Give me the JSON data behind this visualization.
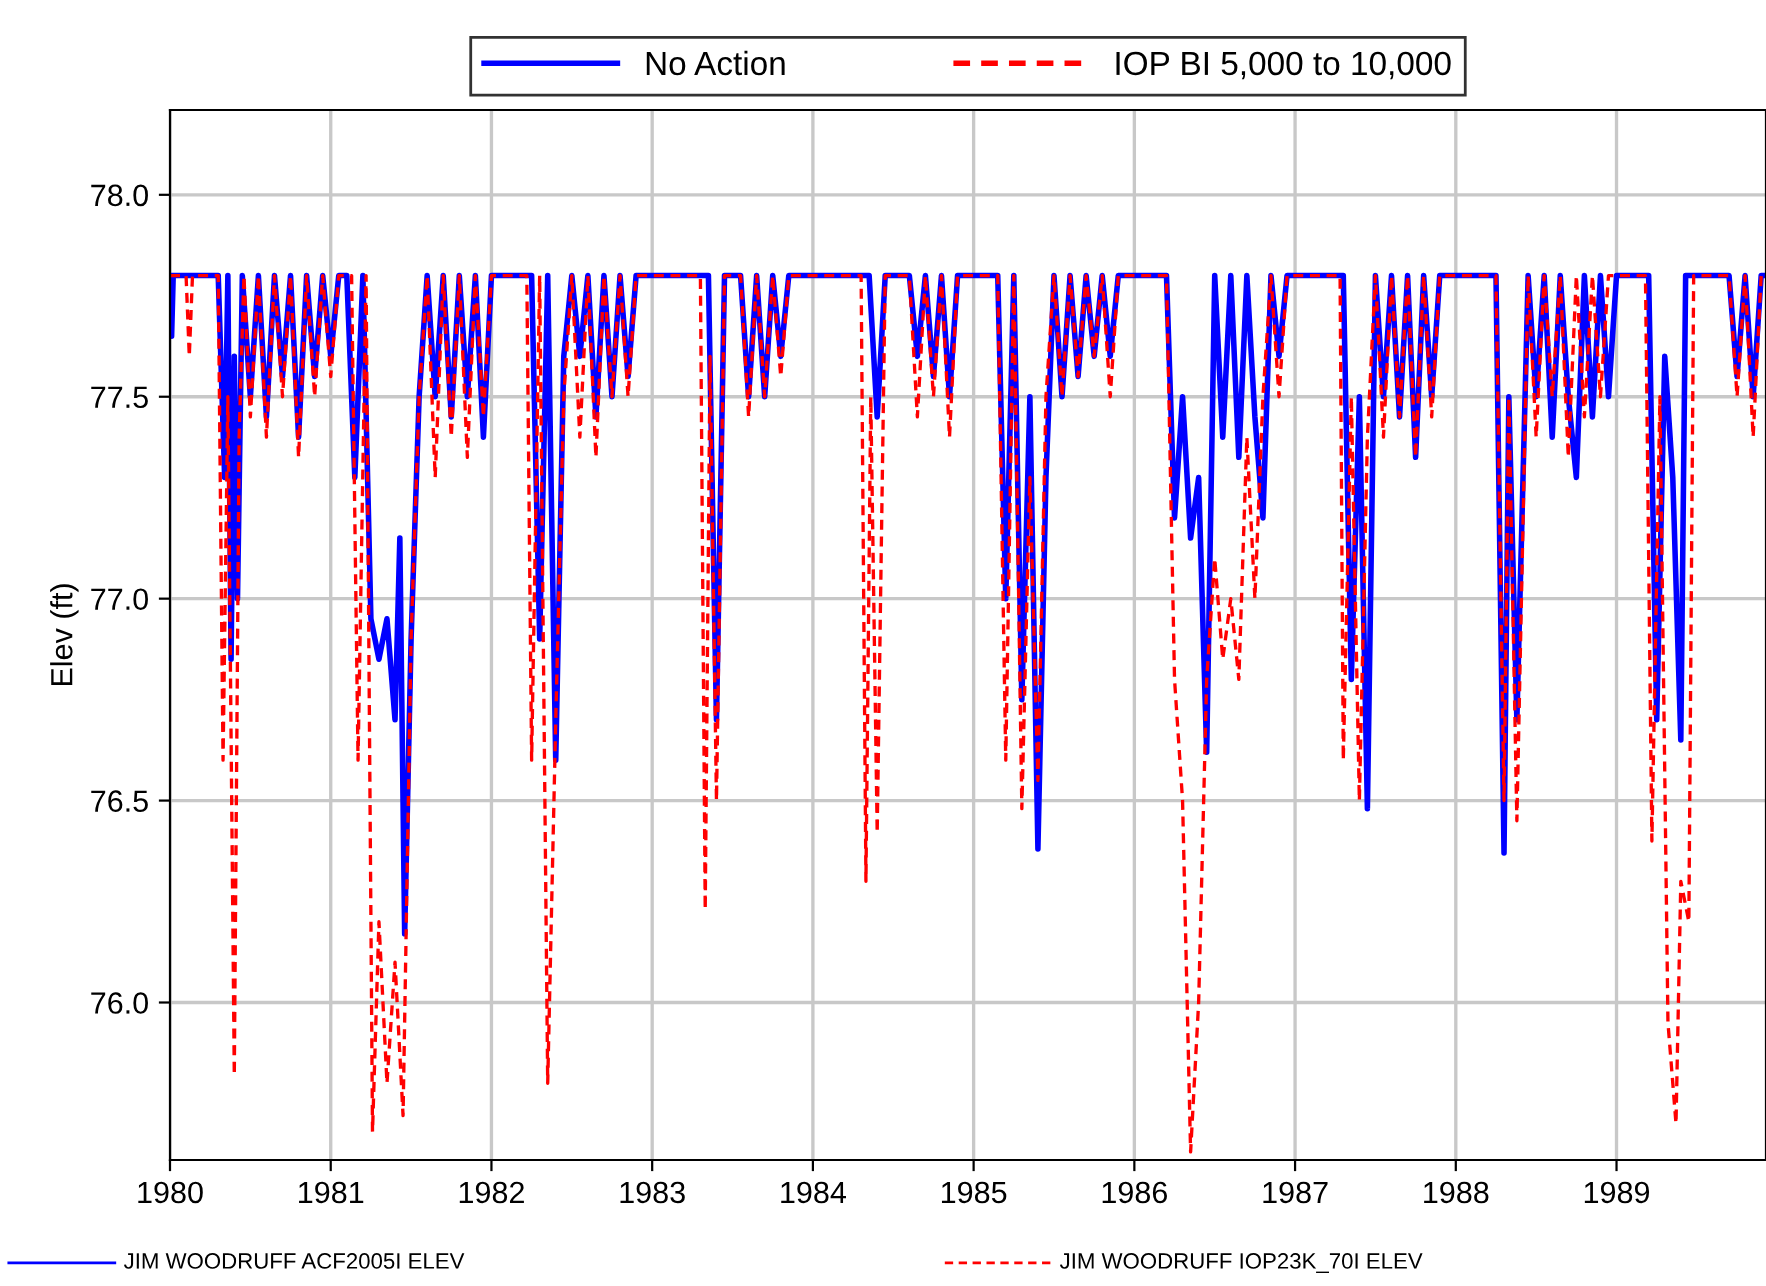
{
  "chart_data": {
    "type": "line",
    "ylabel": "Elev (ft)",
    "xlim": [
      1980,
      1989.93
    ],
    "xticks": [
      1980,
      1981,
      1982,
      1983,
      1984,
      1985,
      1986,
      1987,
      1988,
      1989
    ],
    "ylim": [
      75.61,
      78.21
    ],
    "yticks": [
      {
        "value": 76.0,
        "label": "76.0"
      },
      {
        "value": 76.5,
        "label": "76.5"
      },
      {
        "value": 77.0,
        "label": "77.0"
      },
      {
        "value": 77.5,
        "label": "77.5"
      },
      {
        "value": 78.0,
        "label": "78.0"
      }
    ],
    "grid": true,
    "legend": "top",
    "annotations": [
      "JIM WOODRUFF ACF2005I ELEV",
      "JIM WOODRUFF IOP23K_70I ELEV"
    ],
    "series": [
      {
        "name": "No Action",
        "color": "#0000ff",
        "line_style": "solid",
        "x": [
          1980.0,
          1980.01,
          1980.02,
          1980.3,
          1980.34,
          1980.36,
          1980.38,
          1980.4,
          1980.42,
          1980.45,
          1980.5,
          1980.55,
          1980.6,
          1980.65,
          1980.7,
          1980.75,
          1980.8,
          1980.85,
          1980.9,
          1980.95,
          1981.0,
          1981.05,
          1981.1,
          1981.15,
          1981.2,
          1981.25,
          1981.3,
          1981.35,
          1981.4,
          1981.43,
          1981.46,
          1981.5,
          1981.55,
          1981.6,
          1981.65,
          1981.7,
          1981.75,
          1981.8,
          1981.85,
          1981.9,
          1981.95,
          1982.0,
          1982.25,
          1982.3,
          1982.35,
          1982.4,
          1982.45,
          1982.5,
          1982.55,
          1982.6,
          1982.65,
          1982.7,
          1982.75,
          1982.8,
          1982.85,
          1982.9,
          1983.35,
          1983.4,
          1983.45,
          1983.55,
          1983.6,
          1983.65,
          1983.7,
          1983.75,
          1983.8,
          1983.85,
          1984.35,
          1984.4,
          1984.45,
          1984.6,
          1984.65,
          1984.7,
          1984.75,
          1984.8,
          1984.85,
          1984.9,
          1985.15,
          1985.2,
          1985.25,
          1985.3,
          1985.35,
          1985.4,
          1985.45,
          1985.5,
          1985.55,
          1985.6,
          1985.65,
          1985.7,
          1985.75,
          1985.8,
          1985.85,
          1985.9,
          1986.2,
          1986.25,
          1986.3,
          1986.35,
          1986.4,
          1986.45,
          1986.5,
          1986.55,
          1986.6,
          1986.65,
          1986.7,
          1986.75,
          1986.8,
          1986.85,
          1986.9,
          1986.95,
          1987.3,
          1987.35,
          1987.4,
          1987.45,
          1987.5,
          1987.55,
          1987.6,
          1987.65,
          1987.7,
          1987.75,
          1987.8,
          1987.85,
          1987.9,
          1988.25,
          1988.3,
          1988.33,
          1988.38,
          1988.45,
          1988.5,
          1988.55,
          1988.6,
          1988.65,
          1988.7,
          1988.75,
          1988.8,
          1988.85,
          1988.9,
          1988.95,
          1989.0,
          1989.2,
          1989.25,
          1989.3,
          1989.35,
          1989.4,
          1989.43,
          1989.7,
          1989.75,
          1989.8,
          1989.85,
          1989.9,
          1989.93
        ],
        "values": [
          77.8,
          77.65,
          77.8,
          77.8,
          77.3,
          77.8,
          76.85,
          77.6,
          77.0,
          77.8,
          77.5,
          77.8,
          77.45,
          77.8,
          77.55,
          77.8,
          77.4,
          77.8,
          77.55,
          77.8,
          77.6,
          77.8,
          77.8,
          77.3,
          77.8,
          76.95,
          76.85,
          76.95,
          76.7,
          77.15,
          76.17,
          76.9,
          77.5,
          77.8,
          77.5,
          77.8,
          77.45,
          77.8,
          77.5,
          77.8,
          77.4,
          77.8,
          77.8,
          76.9,
          77.8,
          76.6,
          77.6,
          77.8,
          77.6,
          77.8,
          77.45,
          77.8,
          77.5,
          77.8,
          77.55,
          77.8,
          77.8,
          76.7,
          77.8,
          77.8,
          77.5,
          77.8,
          77.5,
          77.8,
          77.6,
          77.8,
          77.8,
          77.45,
          77.8,
          77.8,
          77.6,
          77.8,
          77.55,
          77.8,
          77.5,
          77.8,
          77.8,
          77.0,
          77.8,
          76.75,
          77.5,
          76.38,
          77.3,
          77.8,
          77.5,
          77.8,
          77.55,
          77.8,
          77.6,
          77.8,
          77.6,
          77.8,
          77.8,
          77.2,
          77.5,
          77.15,
          77.3,
          76.62,
          77.8,
          77.4,
          77.8,
          77.35,
          77.8,
          77.45,
          77.2,
          77.8,
          77.6,
          77.8,
          77.8,
          76.8,
          77.5,
          76.48,
          77.8,
          77.5,
          77.8,
          77.45,
          77.8,
          77.35,
          77.8,
          77.5,
          77.8,
          77.8,
          76.37,
          77.5,
          76.7,
          77.8,
          77.5,
          77.8,
          77.4,
          77.8,
          77.5,
          77.3,
          77.8,
          77.45,
          77.8,
          77.5,
          77.8,
          77.8,
          76.7,
          77.6,
          77.3,
          76.65,
          77.8,
          77.8,
          77.55,
          77.8,
          77.5,
          77.8,
          77.8
        ]
      },
      {
        "name": "IOP BI 5,000 to 10,000",
        "color": "#ff0000",
        "line_style": "dashed",
        "x": [
          1980.0,
          1980.1,
          1980.12,
          1980.14,
          1980.3,
          1980.33,
          1980.36,
          1980.4,
          1980.43,
          1980.46,
          1980.5,
          1980.55,
          1980.6,
          1980.65,
          1980.7,
          1980.75,
          1980.8,
          1980.85,
          1980.9,
          1980.95,
          1981.0,
          1981.05,
          1981.13,
          1981.17,
          1981.22,
          1981.26,
          1981.3,
          1981.35,
          1981.4,
          1981.45,
          1981.5,
          1981.55,
          1981.6,
          1981.65,
          1981.7,
          1981.75,
          1981.8,
          1981.85,
          1981.9,
          1981.95,
          1982.0,
          1982.22,
          1982.25,
          1982.3,
          1982.35,
          1982.4,
          1982.45,
          1982.5,
          1982.55,
          1982.6,
          1982.65,
          1982.7,
          1982.75,
          1982.8,
          1982.85,
          1982.9,
          1983.3,
          1983.33,
          1983.36,
          1983.4,
          1983.45,
          1983.55,
          1983.6,
          1983.65,
          1983.7,
          1983.75,
          1983.8,
          1983.85,
          1984.3,
          1984.33,
          1984.36,
          1984.4,
          1984.45,
          1984.6,
          1984.65,
          1984.7,
          1984.75,
          1984.8,
          1984.85,
          1984.9,
          1985.15,
          1985.2,
          1985.25,
          1985.3,
          1985.35,
          1985.4,
          1985.45,
          1985.5,
          1985.55,
          1985.6,
          1985.65,
          1985.7,
          1985.75,
          1985.8,
          1985.85,
          1985.9,
          1986.2,
          1986.25,
          1986.3,
          1986.35,
          1986.4,
          1986.45,
          1986.5,
          1986.55,
          1986.6,
          1986.65,
          1986.7,
          1986.75,
          1986.8,
          1986.85,
          1986.9,
          1986.95,
          1987.28,
          1987.3,
          1987.35,
          1987.4,
          1987.45,
          1987.5,
          1987.55,
          1987.6,
          1987.65,
          1987.7,
          1987.75,
          1987.8,
          1987.85,
          1987.9,
          1988.25,
          1988.3,
          1988.33,
          1988.38,
          1988.45,
          1988.5,
          1988.55,
          1988.6,
          1988.65,
          1988.7,
          1988.75,
          1988.8,
          1988.85,
          1988.9,
          1988.95,
          1989.18,
          1989.22,
          1989.27,
          1989.32,
          1989.37,
          1989.4,
          1989.45,
          1989.48,
          1989.7,
          1989.75,
          1989.8,
          1989.85,
          1989.9,
          1989.93
        ],
        "values": [
          77.8,
          77.8,
          77.6,
          77.8,
          77.8,
          76.6,
          77.5,
          75.82,
          77.4,
          77.8,
          77.45,
          77.8,
          77.4,
          77.8,
          77.5,
          77.8,
          77.35,
          77.8,
          77.5,
          77.8,
          77.55,
          77.8,
          77.8,
          76.6,
          77.8,
          75.68,
          76.2,
          75.8,
          76.1,
          75.72,
          76.9,
          77.5,
          77.8,
          77.3,
          77.8,
          77.4,
          77.8,
          77.35,
          77.8,
          77.45,
          77.8,
          77.8,
          76.6,
          77.8,
          75.8,
          76.7,
          77.5,
          77.8,
          77.4,
          77.8,
          77.35,
          77.8,
          77.5,
          77.8,
          77.5,
          77.8,
          77.8,
          76.23,
          77.6,
          76.5,
          77.8,
          77.8,
          77.45,
          77.8,
          77.5,
          77.8,
          77.55,
          77.8,
          77.8,
          76.3,
          77.5,
          76.42,
          77.8,
          77.8,
          77.45,
          77.8,
          77.5,
          77.8,
          77.4,
          77.8,
          77.8,
          76.6,
          77.8,
          76.48,
          77.3,
          76.55,
          77.5,
          77.8,
          77.5,
          77.8,
          77.55,
          77.8,
          77.6,
          77.8,
          77.5,
          77.8,
          77.8,
          76.8,
          76.5,
          75.63,
          76.0,
          76.8,
          77.1,
          76.85,
          77.0,
          76.8,
          77.4,
          77.0,
          77.5,
          77.8,
          77.5,
          77.8,
          77.8,
          76.6,
          77.5,
          76.5,
          77.4,
          77.8,
          77.4,
          77.8,
          77.45,
          77.8,
          77.35,
          77.8,
          77.45,
          77.8,
          77.8,
          76.5,
          77.5,
          76.45,
          77.8,
          77.4,
          77.8,
          77.5,
          77.8,
          77.35,
          77.8,
          77.45,
          77.8,
          77.5,
          77.8,
          77.8,
          76.4,
          77.5,
          75.95,
          75.7,
          76.3,
          76.2,
          77.8,
          77.8,
          77.5,
          77.8,
          77.4,
          77.8,
          77.8
        ]
      }
    ]
  }
}
